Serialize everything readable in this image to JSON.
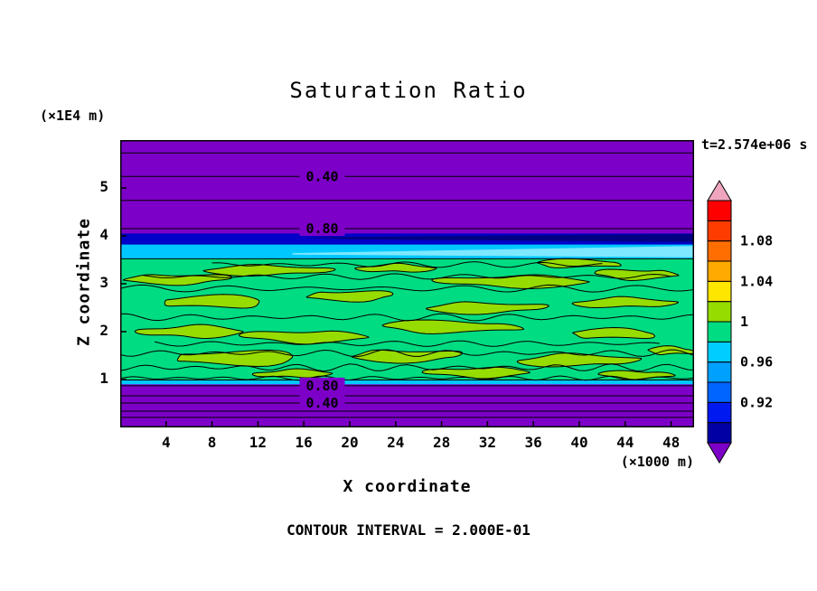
{
  "chart_data": {
    "type": "heatmap",
    "subtype": "filled-contour",
    "title": "Saturation Ratio",
    "time_label": "t=2.574e+06 s",
    "contour_note": "CONTOUR INTERVAL = 2.000E-01",
    "xlabel": "X coordinate",
    "x_unit": "(×1000 m)",
    "zlabel": "Z coordinate",
    "z_unit": "(×1E4 m)",
    "x_range": [
      0,
      50
    ],
    "z_range": [
      0,
      6
    ],
    "x_ticks": [
      4,
      8,
      12,
      16,
      20,
      24,
      28,
      32,
      36,
      40,
      44,
      48
    ],
    "z_ticks": [
      1,
      2,
      3,
      4,
      5
    ],
    "contour_interval": 0.2,
    "label_x": 17.6,
    "colors": {
      "background": "#7D00C8",
      "navy_band": "#0000C8",
      "navy_core": "#000082",
      "cyan_band": "#00C8FF",
      "cyan_light": "#7DE8FF",
      "green": "#00DC82",
      "yellow_green": "#96DC00",
      "line": "#000000"
    },
    "bands": [
      {
        "z1": 0.0,
        "z2": 6.0,
        "color": "#7D00C8"
      },
      {
        "z1": 0.9,
        "z2": 0.99,
        "color": "#00C8FF"
      },
      {
        "z1": 0.99,
        "z2": 3.52,
        "color": "#00DC82"
      },
      {
        "z1": 3.52,
        "z2": 3.82,
        "color": "#00C8FF"
      },
      {
        "z1": 3.82,
        "z2": 4.05,
        "color": "#0000C8"
      }
    ],
    "streaks": [
      {
        "points": [
          [
            16,
            3.97
          ],
          [
            50,
            4.04
          ],
          [
            50,
            3.87
          ],
          [
            20,
            3.93
          ]
        ],
        "color": "#000082"
      },
      {
        "points": [
          [
            15,
            3.64
          ],
          [
            50,
            3.79
          ],
          [
            50,
            3.55
          ],
          [
            15,
            3.61
          ]
        ],
        "color": "#7DE8FF"
      }
    ],
    "contour_lines": [
      {
        "z": 5.73
      },
      {
        "z": 5.24,
        "label": "0.40"
      },
      {
        "z": 4.74
      },
      {
        "z": 4.15,
        "label": "0.80"
      },
      {
        "z": 3.52
      },
      {
        "z": 0.99
      },
      {
        "z": 0.87,
        "label": "0.80"
      },
      {
        "z": 0.66
      },
      {
        "z": 0.51,
        "label": "0.40"
      },
      {
        "z": 0.34
      },
      {
        "z": 0.21
      }
    ],
    "blobs": [
      [
        5,
        3.1,
        4.5,
        0.1
      ],
      [
        13,
        3.28,
        5.0,
        0.1
      ],
      [
        24,
        3.32,
        3.0,
        0.08
      ],
      [
        34,
        3.05,
        6.0,
        0.12
      ],
      [
        45,
        3.2,
        3.5,
        0.1
      ],
      [
        40,
        3.42,
        4.0,
        0.08
      ],
      [
        8,
        2.62,
        5.0,
        0.12
      ],
      [
        20,
        2.75,
        4.0,
        0.1
      ],
      [
        32,
        2.5,
        5.0,
        0.11
      ],
      [
        44,
        2.6,
        4.0,
        0.1
      ],
      [
        6,
        2.0,
        4.0,
        0.12
      ],
      [
        16,
        1.9,
        5.0,
        0.12
      ],
      [
        29,
        2.1,
        6.0,
        0.12
      ],
      [
        43,
        1.95,
        4.0,
        0.1
      ],
      [
        10,
        1.45,
        6.0,
        0.14
      ],
      [
        25,
        1.5,
        5.0,
        0.12
      ],
      [
        40,
        1.4,
        5.0,
        0.12
      ],
      [
        15,
        1.12,
        3.0,
        0.08
      ],
      [
        31,
        1.15,
        4.0,
        0.1
      ],
      [
        45,
        1.1,
        3.0,
        0.08
      ],
      [
        48,
        1.6,
        2.0,
        0.08
      ]
    ],
    "squiggles": [
      [
        0,
        50,
        2.9,
        0.05,
        7
      ],
      [
        0,
        50,
        2.3,
        0.05,
        9
      ],
      [
        3,
        47,
        1.75,
        0.04,
        8
      ],
      [
        0,
        50,
        1.55,
        0.05,
        10
      ],
      [
        0,
        50,
        1.25,
        0.05,
        11
      ],
      [
        0,
        50,
        1.03,
        0.03,
        12
      ],
      [
        8,
        42,
        3.4,
        0.04,
        6
      ],
      [
        2,
        48,
        3.15,
        0.04,
        8
      ]
    ],
    "colorbar": {
      "range": [
        0.88,
        1.12
      ],
      "segment_step": 0.02,
      "labels": [
        {
          "value": 1.08,
          "text": "1.08"
        },
        {
          "value": 1.04,
          "text": "1.04"
        },
        {
          "value": 1.0,
          "text": "1"
        },
        {
          "value": 0.96,
          "text": "0.96"
        },
        {
          "value": 0.92,
          "text": "0.92"
        }
      ],
      "segments": [
        [
          0.88,
          "#0000A5"
        ],
        [
          0.9,
          "#0019F0"
        ],
        [
          0.92,
          "#0064FF"
        ],
        [
          0.94,
          "#00A0FF"
        ],
        [
          0.96,
          "#00CDFF"
        ],
        [
          0.98,
          "#00DC82"
        ],
        [
          1.0,
          "#96DC00"
        ],
        [
          1.02,
          "#FFE600"
        ],
        [
          1.04,
          "#FFAA00"
        ],
        [
          1.06,
          "#FF6E00"
        ],
        [
          1.08,
          "#FF3C00"
        ],
        [
          1.1,
          "#FF0000"
        ]
      ],
      "top_triangle": "#F0A5BE",
      "bottom_triangle": "#7D00C8"
    }
  }
}
